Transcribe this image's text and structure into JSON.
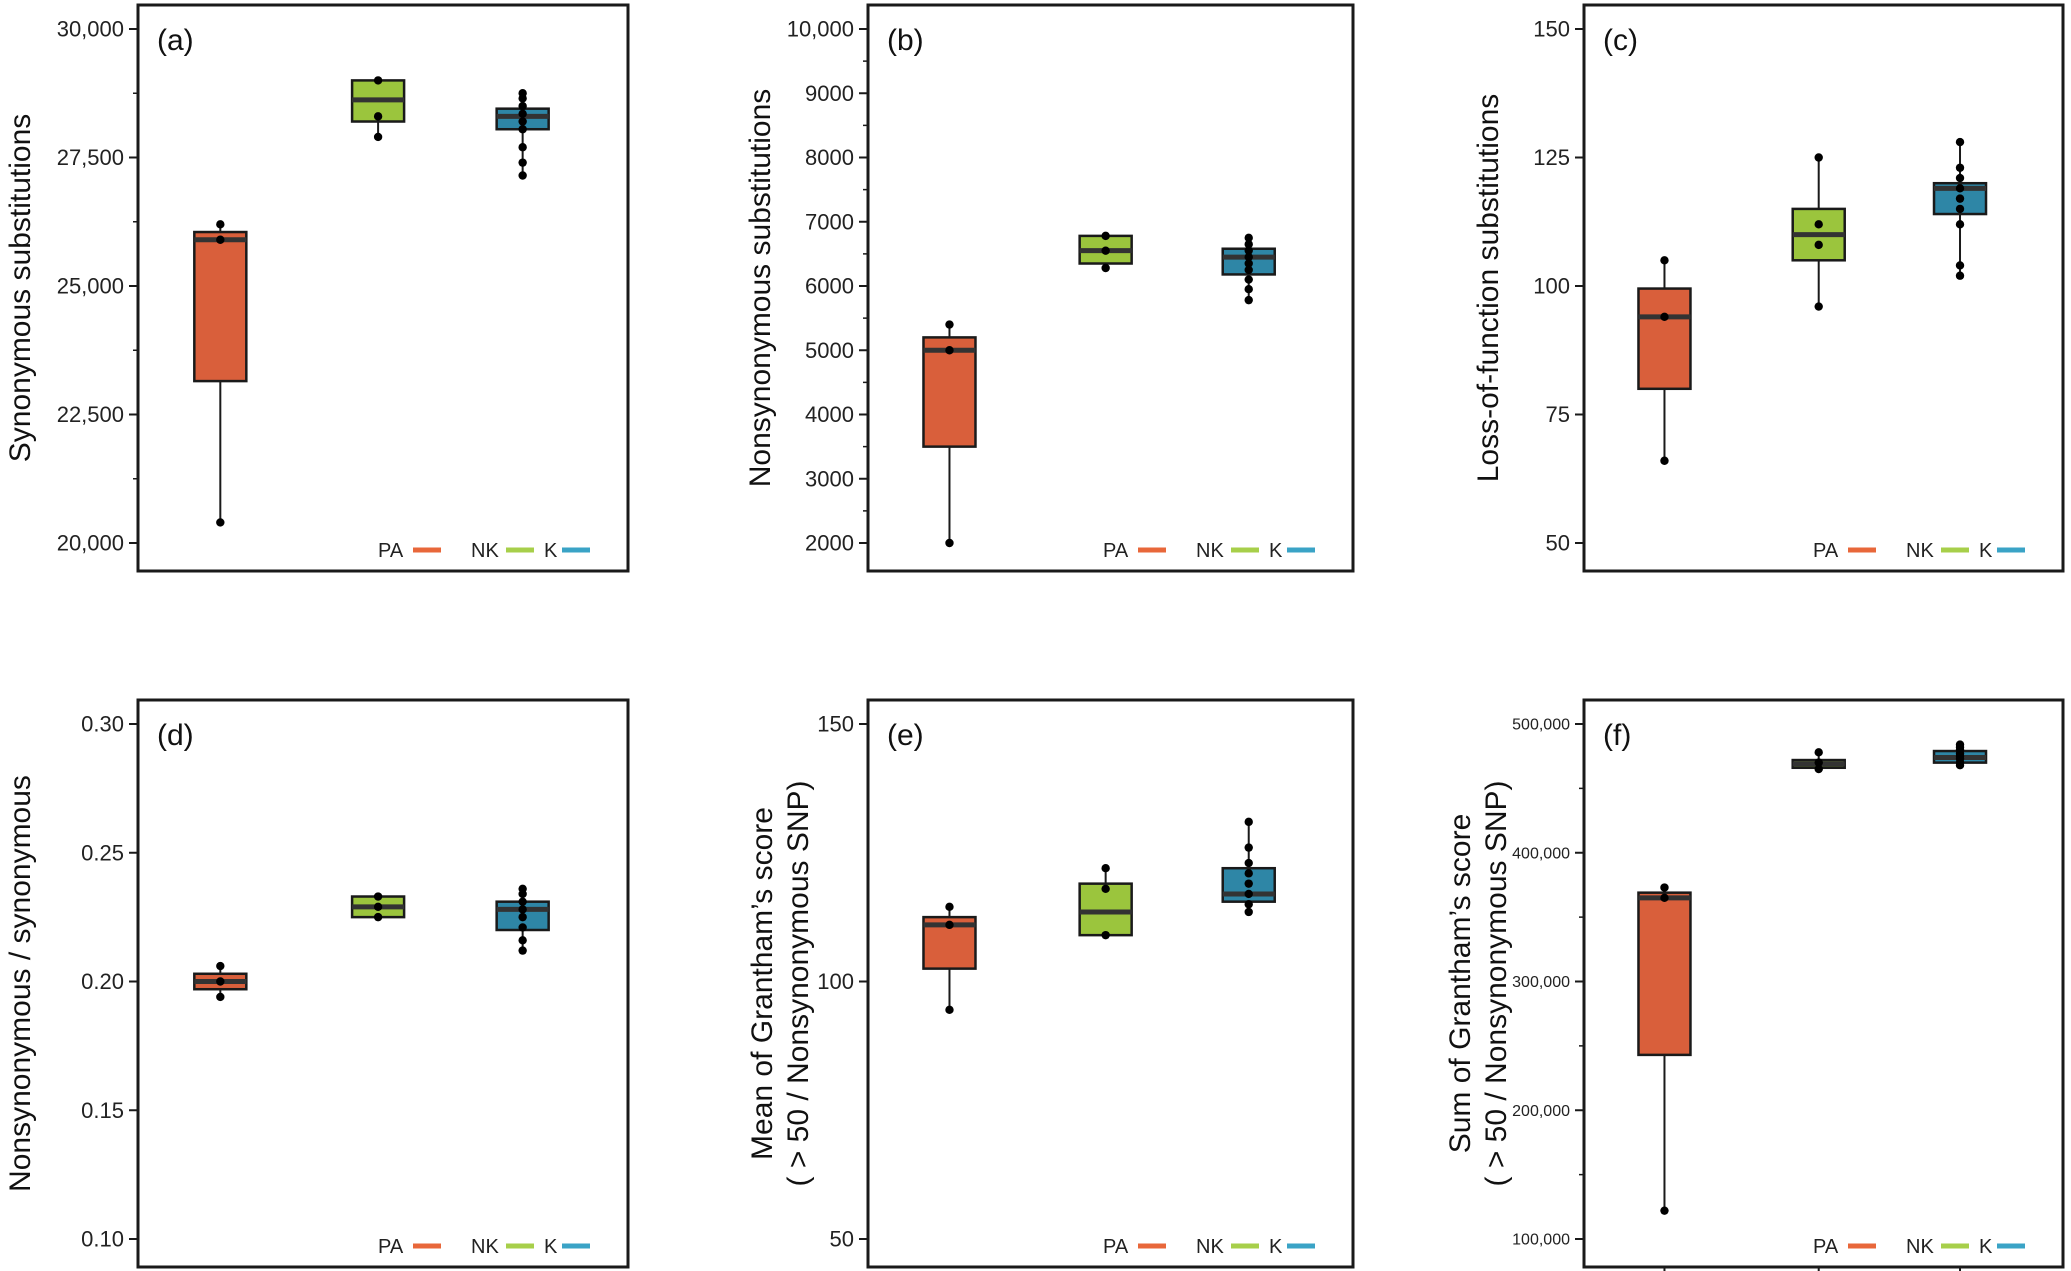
{
  "figure": {
    "legend": {
      "position": "bottom-right"
    }
  },
  "colors": {
    "PA": "#D95F3B",
    "NK": "#9BC53D",
    "K": "#2E86A6"
  },
  "chart_data": [
    {
      "type": "box",
      "panel": "(a)",
      "ylabel": "Synonymous substitutions",
      "ylim": [
        20000,
        30000
      ],
      "ticks": [
        20000,
        22500,
        25000,
        27500,
        30000
      ],
      "tick_labels": [
        "20,000",
        "22,500",
        "25,000",
        "27,500",
        "30,000"
      ],
      "minor_ticks": [
        21250,
        23750,
        26250,
        28750
      ],
      "grid": false,
      "legend": [
        {
          "name": "PA",
          "color": "#E8673A"
        },
        {
          "name": "NK",
          "color": "#A7CF4A"
        },
        {
          "name": "K",
          "color": "#3AA3C6"
        }
      ],
      "groups": [
        {
          "name": "PA",
          "q1": 23150,
          "median": 25900,
          "q3": 26050,
          "whisker_low": 20400,
          "whisker_high": 26200,
          "points": [
            20400,
            25900,
            26200
          ]
        },
        {
          "name": "NK",
          "q1": 28200,
          "median": 28620,
          "q3": 29000,
          "whisker_low": 27900,
          "whisker_high": 29000,
          "points": [
            27900,
            28300,
            29000
          ]
        },
        {
          "name": "K",
          "q1": 28050,
          "median": 28300,
          "q3": 28450,
          "whisker_low": 27150,
          "whisker_high": 28750,
          "points": [
            27150,
            27400,
            27700,
            28050,
            28200,
            28350,
            28500,
            28650,
            28750
          ]
        }
      ]
    },
    {
      "type": "box",
      "panel": "(b)",
      "ylabel": "Nonsynonymous substitutions",
      "ylim": [
        2000,
        10000
      ],
      "ticks": [
        2000,
        3000,
        4000,
        5000,
        6000,
        7000,
        8000,
        9000,
        10000
      ],
      "tick_labels": [
        "2000",
        "3000",
        "4000",
        "5000",
        "6000",
        "7000",
        "8000",
        "9000",
        "10,000"
      ],
      "minor_ticks": [
        2500,
        3500,
        4500,
        5500,
        6500,
        7500,
        8500,
        9500
      ],
      "grid": false,
      "legend": [
        {
          "name": "PA",
          "color": "#E8673A"
        },
        {
          "name": "NK",
          "color": "#A7CF4A"
        },
        {
          "name": "K",
          "color": "#3AA3C6"
        }
      ],
      "groups": [
        {
          "name": "PA",
          "q1": 3500,
          "median": 5000,
          "q3": 5200,
          "whisker_low": 2000,
          "whisker_high": 5400,
          "points": [
            2000,
            5000,
            5400
          ]
        },
        {
          "name": "NK",
          "q1": 6350,
          "median": 6550,
          "q3": 6780,
          "whisker_low": 6280,
          "whisker_high": 6780,
          "points": [
            6280,
            6550,
            6780
          ]
        },
        {
          "name": "K",
          "q1": 6180,
          "median": 6450,
          "q3": 6580,
          "whisker_low": 5780,
          "whisker_high": 6750,
          "points": [
            5780,
            5950,
            6100,
            6250,
            6350,
            6450,
            6550,
            6650,
            6750
          ]
        }
      ]
    },
    {
      "type": "box",
      "panel": "(c)",
      "ylabel": "Loss-of-function substitutions",
      "ylim": [
        50,
        150
      ],
      "ticks": [
        50,
        75,
        100,
        125,
        150
      ],
      "tick_labels": [
        "50",
        "75",
        "100",
        "125",
        "150"
      ],
      "minor_ticks": [],
      "grid": false,
      "legend": [
        {
          "name": "PA",
          "color": "#E8673A"
        },
        {
          "name": "NK",
          "color": "#A7CF4A"
        },
        {
          "name": "K",
          "color": "#3AA3C6"
        }
      ],
      "groups": [
        {
          "name": "PA",
          "q1": 80,
          "median": 94,
          "q3": 99.5,
          "whisker_low": 66,
          "whisker_high": 105,
          "points": [
            66,
            94,
            105
          ]
        },
        {
          "name": "NK",
          "q1": 105,
          "median": 110,
          "q3": 115,
          "whisker_low": 96,
          "whisker_high": 125,
          "points": [
            96,
            108,
            112,
            125
          ]
        },
        {
          "name": "K",
          "q1": 114,
          "median": 119,
          "q3": 120,
          "whisker_low": 102,
          "whisker_high": 128,
          "points": [
            102,
            104,
            112,
            115,
            117,
            119,
            121,
            123,
            128
          ]
        }
      ]
    },
    {
      "type": "box",
      "panel": "(d)",
      "ylabel": "Nonsynonymous / synonymous",
      "ylim": [
        0.1,
        0.3
      ],
      "ticks": [
        0.1,
        0.15,
        0.2,
        0.25,
        0.3
      ],
      "tick_labels": [
        "0.10",
        "0.15",
        "0.20",
        "0.25",
        "0.30"
      ],
      "minor_ticks": [],
      "grid": false,
      "legend": [
        {
          "name": "PA",
          "color": "#E8673A"
        },
        {
          "name": "NK",
          "color": "#A7CF4A"
        },
        {
          "name": "K",
          "color": "#3AA3C6"
        }
      ],
      "groups": [
        {
          "name": "PA",
          "q1": 0.197,
          "median": 0.2,
          "q3": 0.203,
          "whisker_low": 0.194,
          "whisker_high": 0.206,
          "points": [
            0.194,
            0.2,
            0.206
          ]
        },
        {
          "name": "NK",
          "q1": 0.225,
          "median": 0.229,
          "q3": 0.233,
          "whisker_low": 0.225,
          "whisker_high": 0.233,
          "points": [
            0.225,
            0.229,
            0.233
          ]
        },
        {
          "name": "K",
          "q1": 0.22,
          "median": 0.228,
          "q3": 0.231,
          "whisker_low": 0.212,
          "whisker_high": 0.236,
          "points": [
            0.212,
            0.216,
            0.221,
            0.225,
            0.228,
            0.231,
            0.234,
            0.236
          ]
        }
      ]
    },
    {
      "type": "box",
      "panel": "(e)",
      "ylabel": "Mean of Grantham’s score",
      "ylabel2": "( > 50 / Nonsynonymous SNP)",
      "ylim": [
        50,
        150
      ],
      "ticks": [
        50,
        100,
        150
      ],
      "tick_labels": [
        "50",
        "100",
        "150"
      ],
      "minor_ticks": [],
      "grid": false,
      "legend": [
        {
          "name": "PA",
          "color": "#E8673A"
        },
        {
          "name": "NK",
          "color": "#A7CF4A"
        },
        {
          "name": "K",
          "color": "#3AA3C6"
        }
      ],
      "groups": [
        {
          "name": "PA",
          "q1": 102.5,
          "median": 111,
          "q3": 112.5,
          "whisker_low": 94.5,
          "whisker_high": 114.5,
          "points": [
            94.5,
            111,
            114.5
          ]
        },
        {
          "name": "NK",
          "q1": 109,
          "median": 113.5,
          "q3": 119,
          "whisker_low": 109,
          "whisker_high": 122,
          "points": [
            109,
            118,
            122
          ]
        },
        {
          "name": "K",
          "q1": 115.5,
          "median": 117,
          "q3": 122,
          "whisker_low": 113.5,
          "whisker_high": 131,
          "points": [
            113.5,
            115,
            117,
            119,
            121,
            123,
            126,
            131
          ]
        }
      ]
    },
    {
      "type": "box",
      "panel": "(f)",
      "ylabel": "Sum of Grantham’s score",
      "ylabel2": "( > 50 / Nonsynonymous SNP)",
      "ylim": [
        100000,
        500000
      ],
      "ticks": [
        100000,
        200000,
        300000,
        400000,
        500000
      ],
      "tick_labels": [
        "100,000",
        "200,000",
        "300,000",
        "400,000",
        "500,000"
      ],
      "minor_ticks": [
        150000,
        250000,
        350000,
        450000
      ],
      "grid": false,
      "legend": [
        {
          "name": "PA",
          "color": "#E8673A"
        },
        {
          "name": "NK",
          "color": "#A7CF4A"
        },
        {
          "name": "K",
          "color": "#3AA3C6"
        }
      ],
      "groups": [
        {
          "name": "PA",
          "q1": 243000,
          "median": 365000,
          "q3": 369000,
          "whisker_low": 122000,
          "whisker_high": 373000,
          "points": [
            122000,
            365000,
            373000
          ]
        },
        {
          "name": "NK",
          "q1": 466000,
          "median": 469000,
          "q3": 472000,
          "whisker_low": 465000,
          "whisker_high": 478000,
          "points": [
            465000,
            470000,
            478000
          ]
        },
        {
          "name": "K",
          "q1": 470000,
          "median": 474000,
          "q3": 479000,
          "whisker_low": 468000,
          "whisker_high": 484000,
          "points": [
            468000,
            470000,
            473000,
            475000,
            477000,
            480000,
            482000,
            484000
          ]
        }
      ]
    }
  ]
}
